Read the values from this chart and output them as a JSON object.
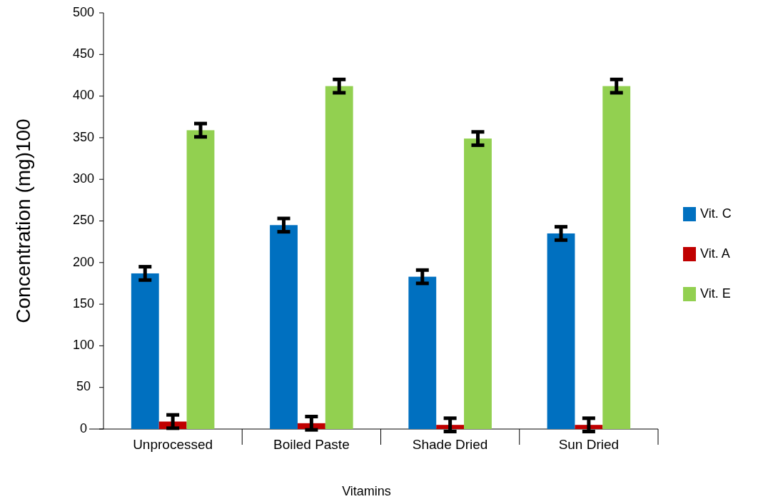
{
  "chart_data": {
    "type": "bar",
    "xlabel": "Vitamins",
    "ylabel": "Concentration (mg)100",
    "categories": [
      "Unprocessed",
      "Boiled Paste",
      "Shade Dried",
      "Sun Dried"
    ],
    "series": [
      {
        "name": "Vit. C",
        "color": "#0070c0",
        "values": [
          187,
          245,
          183,
          235
        ],
        "errors": [
          8,
          8,
          8,
          8
        ]
      },
      {
        "name": "Vit. A",
        "color": "#c00000",
        "values": [
          9,
          7,
          5,
          5
        ],
        "errors": [
          8,
          8,
          8,
          8
        ]
      },
      {
        "name": "Vit. E",
        "color": "#92d050",
        "values": [
          359,
          412,
          349,
          412
        ],
        "errors": [
          8,
          8,
          8,
          8
        ]
      }
    ],
    "ylim": [
      0,
      500
    ],
    "yticks": [
      0,
      50,
      100,
      150,
      200,
      250,
      300,
      350,
      400,
      450,
      500
    ],
    "legend": "right"
  }
}
